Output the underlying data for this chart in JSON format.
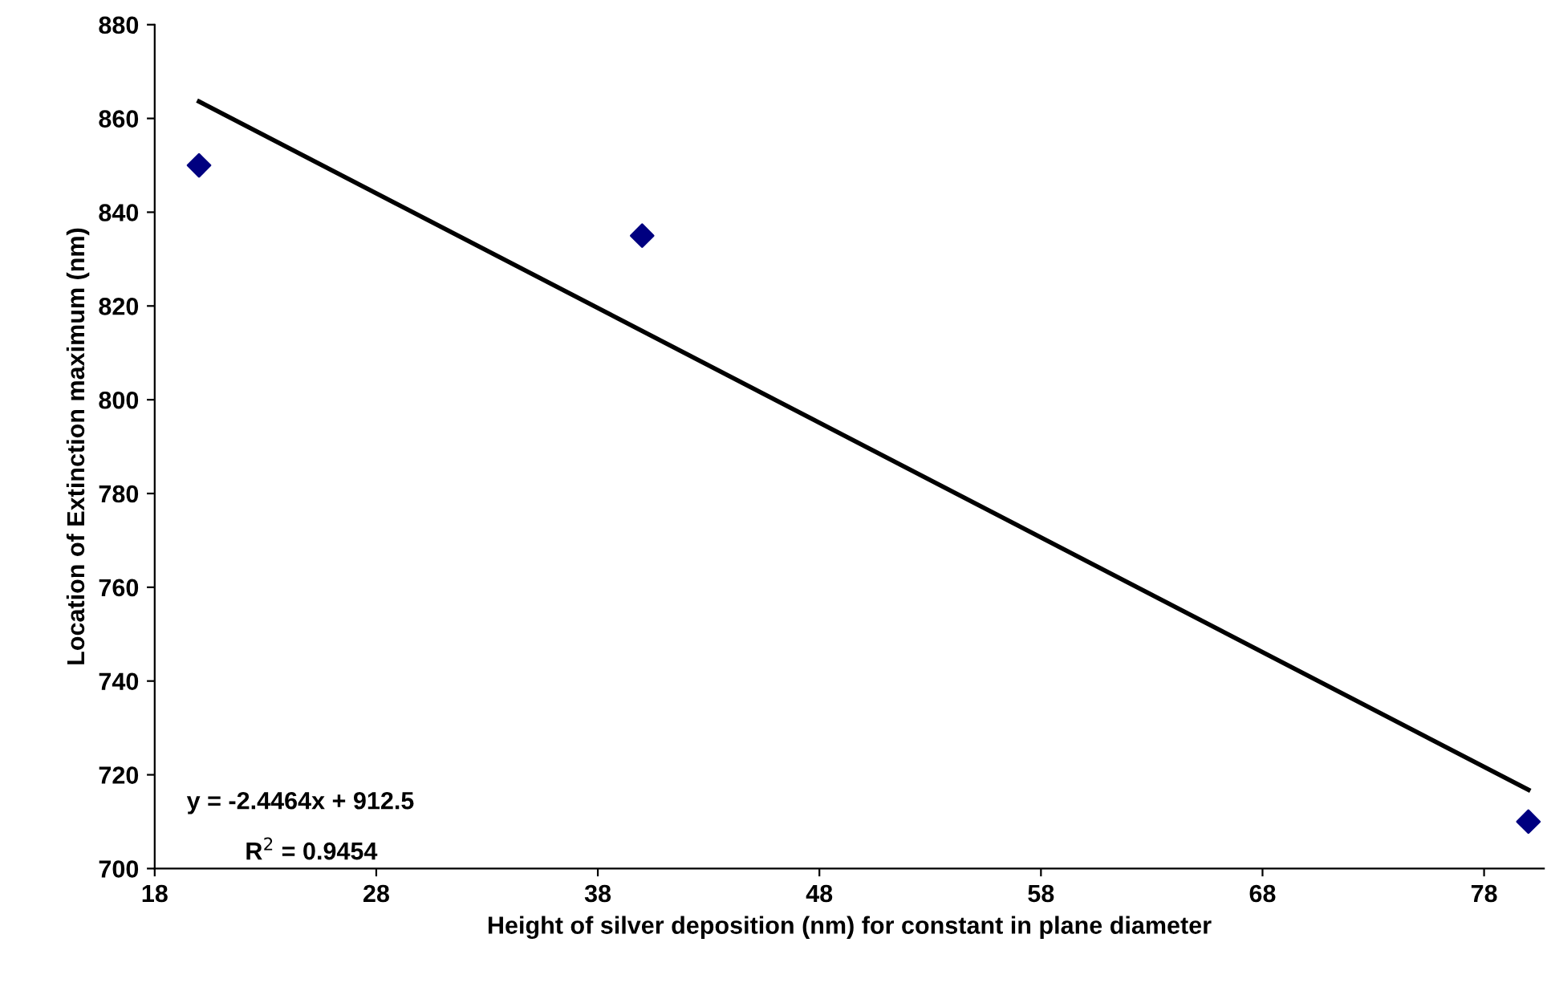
{
  "chart_data": {
    "type": "scatter",
    "xlabel": "Height of silver deposition (nm) for constant in plane diameter",
    "ylabel": "Location of Extinction maximum (nm)",
    "series": [
      {
        "color": "#000080",
        "marker": "diamond",
        "x": [
          20,
          40,
          80
        ],
        "values": [
          850,
          835,
          710
        ]
      },
      {
        "type": "line",
        "color": "#000000",
        "marker": "none",
        "line_style": "solid",
        "x": [
          20,
          80
        ],
        "values": [
          863.6,
          716.8
        ]
      }
    ],
    "xlim": [
      18,
      80.7
    ],
    "xticks": [
      18,
      28,
      38,
      48,
      58,
      68,
      78
    ],
    "ylim": [
      700,
      880
    ],
    "yticks": [
      700,
      720,
      740,
      760,
      780,
      800,
      820,
      840,
      860,
      880
    ],
    "grid": false,
    "legend": false,
    "annotations": [
      {
        "text": "y = -2.4464x + 912.5"
      },
      {
        "text": "R$^{2}$ = 0.9454"
      }
    ]
  }
}
